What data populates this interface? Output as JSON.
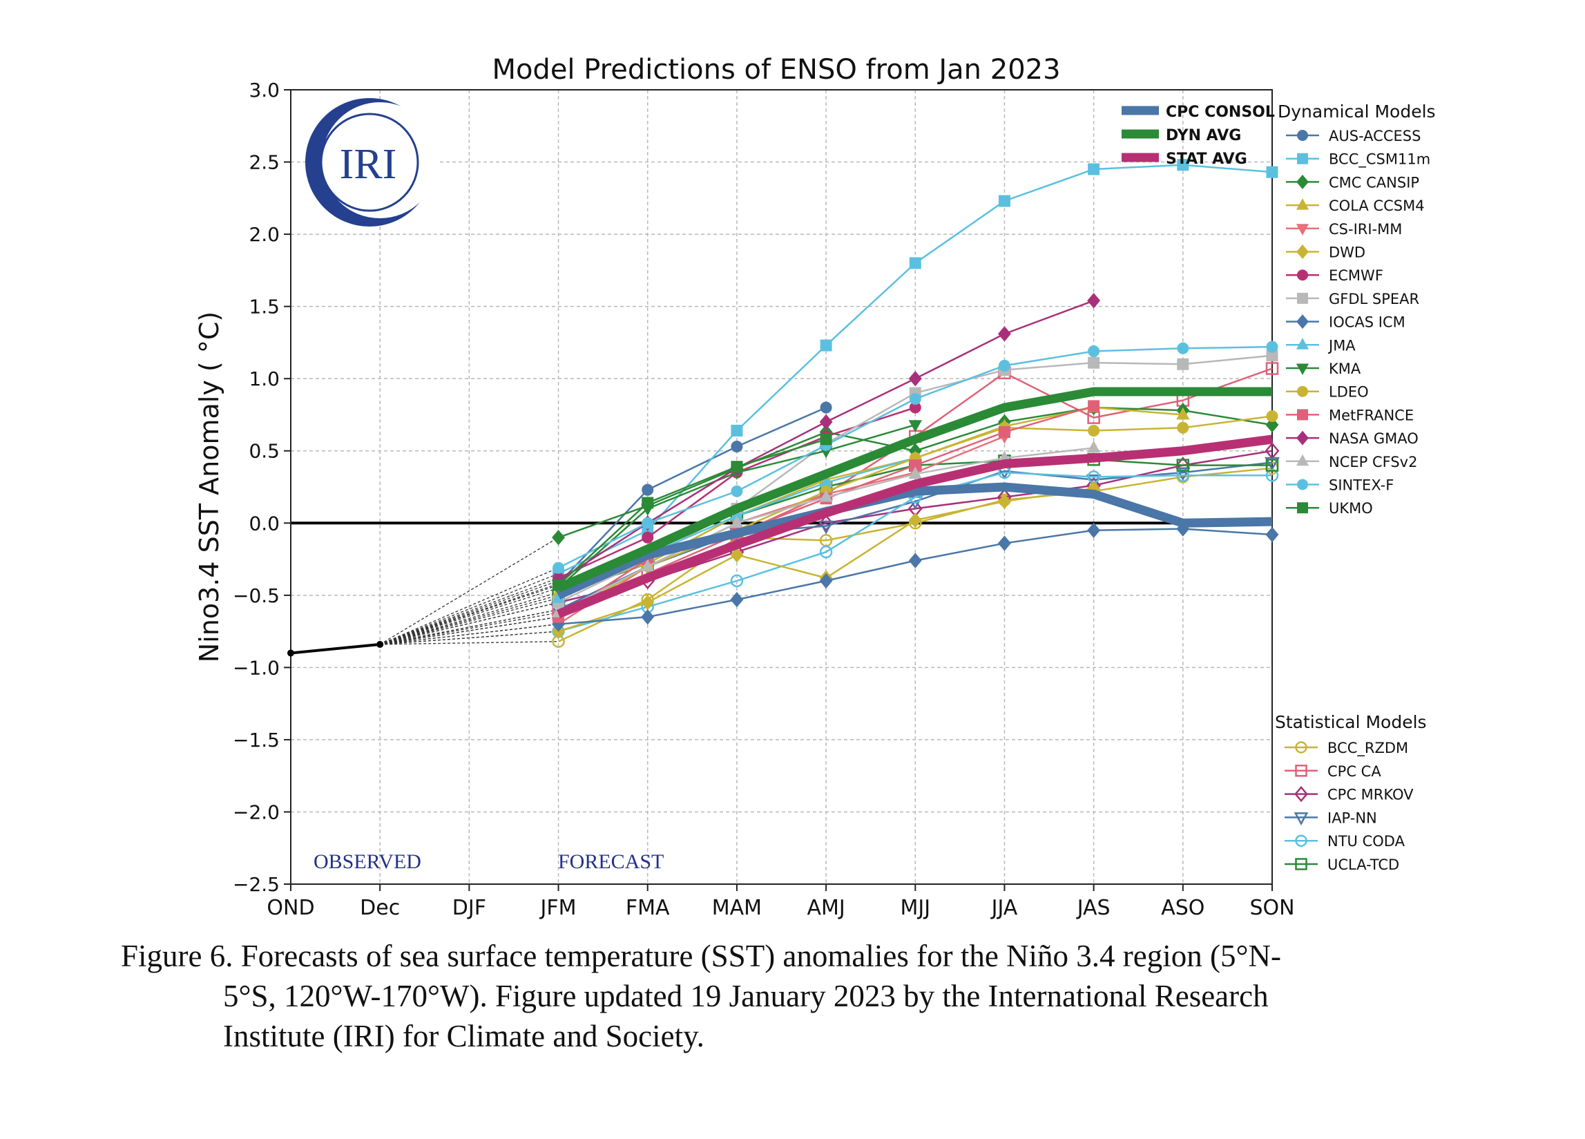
{
  "chart_data": {
    "type": "line",
    "title": "Model Predictions of ENSO from Jan 2023",
    "ylabel": "Nino3.4 SST Anomaly ( °C)",
    "xlabel": "",
    "categories": [
      "OND",
      "Dec",
      "DJF",
      "JFM",
      "FMA",
      "MAM",
      "AMJ",
      "MJJ",
      "JJA",
      "JAS",
      "ASO",
      "SON"
    ],
    "ylim": [
      -2.5,
      3.0
    ],
    "yticks": [
      -2.5,
      -2.0,
      -1.5,
      -1.0,
      -0.5,
      0.0,
      0.5,
      1.0,
      1.5,
      2.0,
      2.5,
      3.0
    ],
    "ytick_labels": [
      "−2.5",
      "−2.0",
      "−1.5",
      "−1.0",
      "−0.5",
      "0.0",
      "0.5",
      "1.0",
      "1.5",
      "2.0",
      "2.5",
      "3.0"
    ],
    "grid": true,
    "annotations": {
      "observed": "OBSERVED",
      "forecast": "FORECAST",
      "logo": "IRI"
    },
    "observed": {
      "x": [
        "OND",
        "Dec"
      ],
      "values": [
        -0.9,
        -0.84
      ]
    },
    "averages": [
      {
        "name": "CPC CONSOL",
        "color": "#4a76a8",
        "values": [
          null,
          null,
          null,
          -0.5,
          -0.22,
          -0.07,
          0.08,
          0.22,
          0.25,
          0.2,
          0.0,
          0.01
        ]
      },
      {
        "name": "DYN AVG",
        "color": "#2a8a36",
        "values": [
          null,
          null,
          null,
          -0.45,
          -0.18,
          0.1,
          0.34,
          0.58,
          0.8,
          0.91,
          0.91,
          0.91
        ]
      },
      {
        "name": "STAT AVG",
        "color": "#b83073",
        "values": [
          null,
          null,
          null,
          -0.63,
          -0.38,
          -0.15,
          0.07,
          0.27,
          0.41,
          0.45,
          0.5,
          0.58
        ]
      }
    ],
    "legend_dynamical_title": "Dynamical Models",
    "legend_statistical_title": "Statistical Models",
    "dynamical_models": [
      {
        "name": "AUS-ACCESS",
        "color": "#4a76a8",
        "marker": "circle",
        "values": [
          null,
          null,
          null,
          -0.42,
          0.23,
          0.53,
          0.8,
          null,
          null,
          null,
          null,
          null
        ]
      },
      {
        "name": "BCC_CSM11m",
        "color": "#5bc0e0",
        "marker": "square",
        "values": [
          null,
          null,
          null,
          -0.35,
          -0.05,
          0.64,
          1.23,
          1.8,
          2.23,
          2.45,
          2.48,
          2.43
        ]
      },
      {
        "name": "CMC CANSIP",
        "color": "#2a8a36",
        "marker": "diamond",
        "values": [
          null,
          null,
          null,
          -0.1,
          0.12,
          0.38,
          0.63,
          0.5,
          0.7,
          0.8,
          0.78,
          0.68
        ]
      },
      {
        "name": "COLA CCSM4",
        "color": "#c8b432",
        "marker": "triangle-up",
        "values": [
          null,
          null,
          null,
          -0.48,
          -0.28,
          0.05,
          0.3,
          0.45,
          0.67,
          0.8,
          0.75,
          null
        ]
      },
      {
        "name": "CS-IRI-MM",
        "color": "#e8707a",
        "marker": "triangle-down",
        "values": [
          null,
          null,
          null,
          -0.7,
          -0.3,
          0.0,
          0.2,
          0.35,
          0.6,
          null,
          null,
          null
        ]
      },
      {
        "name": "DWD",
        "color": "#c8b432",
        "marker": "diamond",
        "values": [
          null,
          null,
          null,
          -0.75,
          -0.55,
          -0.22,
          -0.38,
          0.02,
          0.15,
          0.24,
          null,
          null
        ]
      },
      {
        "name": "ECMWF",
        "color": "#b83073",
        "marker": "circle",
        "values": [
          null,
          null,
          null,
          -0.38,
          -0.1,
          0.35,
          0.6,
          0.8,
          null,
          null,
          null,
          null
        ]
      },
      {
        "name": "GFDL SPEAR",
        "color": "#b8b8b8",
        "marker": "square",
        "values": [
          null,
          null,
          null,
          -0.55,
          -0.25,
          0.1,
          0.55,
          0.9,
          1.06,
          1.11,
          1.1,
          1.16
        ]
      },
      {
        "name": "IOCAS ICM",
        "color": "#4a76a8",
        "marker": "diamond",
        "values": [
          null,
          null,
          null,
          -0.7,
          -0.65,
          -0.53,
          -0.4,
          -0.26,
          -0.14,
          -0.05,
          -0.04,
          -0.08
        ]
      },
      {
        "name": "JMA",
        "color": "#5bc0e0",
        "marker": "triangle-up",
        "values": [
          null,
          null,
          null,
          -0.52,
          -0.22,
          0.05,
          0.28,
          0.45,
          null,
          null,
          null,
          null
        ]
      },
      {
        "name": "KMA",
        "color": "#2a8a36",
        "marker": "triangle-down",
        "values": [
          null,
          null,
          null,
          -0.45,
          0.1,
          0.35,
          0.5,
          0.68,
          null,
          null,
          null,
          null
        ]
      },
      {
        "name": "LDEO",
        "color": "#c8b432",
        "marker": "circle",
        "values": [
          null,
          null,
          null,
          -0.65,
          -0.3,
          -0.05,
          0.22,
          0.45,
          0.66,
          0.64,
          0.66,
          0.74
        ]
      },
      {
        "name": "MetFRANCE",
        "color": "#e06078",
        "marker": "square",
        "values": [
          null,
          null,
          null,
          -0.65,
          -0.25,
          -0.07,
          0.17,
          0.4,
          0.63,
          0.81,
          null,
          null
        ]
      },
      {
        "name": "NASA GMAO",
        "color": "#a8307a",
        "marker": "diamond",
        "values": [
          null,
          null,
          null,
          -0.4,
          0.0,
          0.38,
          0.7,
          1.0,
          1.31,
          1.54,
          null,
          null
        ]
      },
      {
        "name": "NCEP CFSv2",
        "color": "#b8b8b8",
        "marker": "triangle-up",
        "values": [
          null,
          null,
          null,
          -0.62,
          -0.3,
          0.0,
          0.18,
          0.34,
          0.45,
          0.52,
          null,
          null
        ]
      },
      {
        "name": "SINTEX-F",
        "color": "#5bc0e0",
        "marker": "circle",
        "values": [
          null,
          null,
          null,
          -0.31,
          0.0,
          0.22,
          0.54,
          0.86,
          1.09,
          1.19,
          1.21,
          1.22
        ]
      },
      {
        "name": "UKMO",
        "color": "#2a8a36",
        "marker": "square",
        "values": [
          null,
          null,
          null,
          -0.43,
          0.14,
          0.39,
          0.58,
          null,
          null,
          null,
          null,
          null
        ]
      }
    ],
    "statistical_models": [
      {
        "name": "BCC_RZDM",
        "color": "#c8b432",
        "marker": "circle-open",
        "values": [
          null,
          null,
          null,
          -0.82,
          -0.53,
          -0.1,
          -0.12,
          0.0,
          0.16,
          0.22,
          0.32,
          0.38
        ]
      },
      {
        "name": "CPC CA",
        "color": "#e06078",
        "marker": "square-open",
        "values": [
          null,
          null,
          null,
          -0.6,
          -0.35,
          -0.08,
          0.2,
          0.6,
          1.04,
          0.73,
          0.85,
          1.07
        ]
      },
      {
        "name": "CPC MRKOV",
        "color": "#a8307a",
        "marker": "diamond-open",
        "values": [
          null,
          null,
          null,
          -0.55,
          -0.4,
          -0.2,
          0.0,
          0.1,
          0.18,
          0.26,
          0.4,
          0.5
        ]
      },
      {
        "name": "IAP-NN",
        "color": "#4a76a8",
        "marker": "triangle-down-open",
        "values": [
          null,
          null,
          null,
          -0.6,
          -0.3,
          -0.07,
          -0.02,
          0.15,
          0.36,
          0.3,
          0.35,
          0.42
        ]
      },
      {
        "name": "NTU CODA",
        "color": "#5bc0e0",
        "marker": "circle-open",
        "values": [
          null,
          null,
          null,
          -0.75,
          -0.58,
          -0.4,
          -0.2,
          0.18,
          0.35,
          0.32,
          0.33,
          0.33
        ]
      },
      {
        "name": "UCLA-TCD",
        "color": "#2a8a36",
        "marker": "square-open",
        "values": [
          null,
          null,
          null,
          -0.5,
          -0.28,
          0.05,
          0.25,
          0.4,
          0.43,
          0.44,
          0.4,
          0.4
        ]
      }
    ]
  },
  "caption": {
    "line1": "Figure 6. Forecasts of sea surface temperature (SST) anomalies for the Niño 3.4 region (5°N-",
    "line2": "5°S, 120°W-170°W). Figure updated 19 January 2023 by the International Research",
    "line3": "Institute (IRI) for Climate and Society."
  }
}
